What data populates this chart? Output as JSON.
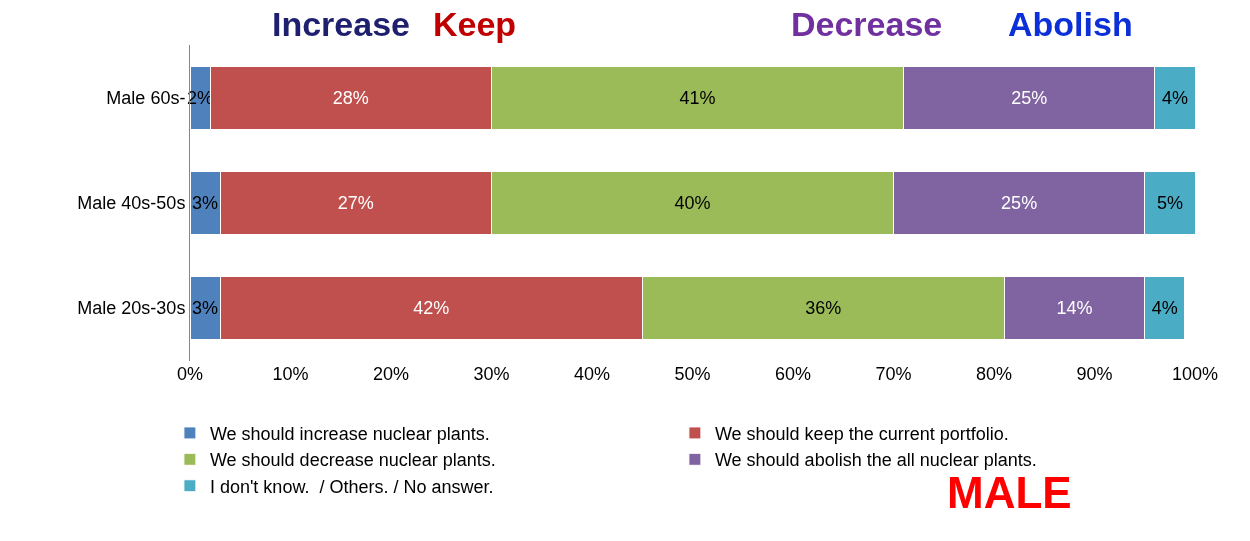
{
  "chart_data": {
    "type": "bar",
    "orientation": "horizontal",
    "stacked": true,
    "legend": "bottom",
    "categories": [
      "Male 60s-",
      "Male 40s-50s",
      "Male 20s-30s"
    ],
    "series": [
      {
        "name": "We should increase nuclear plants.",
        "color": "#4f81bd",
        "values": [
          2,
          3,
          3
        ],
        "value_labels": [
          "2%",
          "3%",
          "3%"
        ]
      },
      {
        "name": "We should keep the current portfolio.",
        "color": "#c0504d",
        "values": [
          28,
          27,
          42
        ],
        "value_labels": [
          "28%",
          "27%",
          "42%"
        ]
      },
      {
        "name": "We should decrease nuclear plants.",
        "color": "#9bbb59",
        "values": [
          41,
          40,
          36
        ],
        "value_labels": [
          "41%",
          "40%",
          "36%"
        ]
      },
      {
        "name": "We should abolish the all nuclear plants.",
        "color": "#8064a2",
        "values": [
          25,
          25,
          14
        ],
        "value_labels": [
          "25%",
          "25%",
          "14%"
        ]
      },
      {
        "name": "I don't know.  / Others. / No answer.",
        "color": "#4bacc6",
        "values": [
          4,
          5,
          4
        ],
        "value_labels": [
          "4%",
          "5%",
          "4%"
        ]
      }
    ],
    "xlim": [
      0,
      100
    ],
    "xticks": [
      {
        "value": 0,
        "label": "0%"
      },
      {
        "value": 10,
        "label": "10%"
      },
      {
        "value": 20,
        "label": "20%"
      },
      {
        "value": 30,
        "label": "30%"
      },
      {
        "value": 40,
        "label": "40%"
      },
      {
        "value": 50,
        "label": "50%"
      },
      {
        "value": 60,
        "label": "60%"
      },
      {
        "value": 70,
        "label": "70%"
      },
      {
        "value": 80,
        "label": "80%"
      },
      {
        "value": 90,
        "label": "90%"
      },
      {
        "value": 100,
        "label": "100%"
      }
    ],
    "annotations": [
      "Increase",
      "Keep",
      "Decrease",
      "Abolish",
      "MALE"
    ]
  }
}
